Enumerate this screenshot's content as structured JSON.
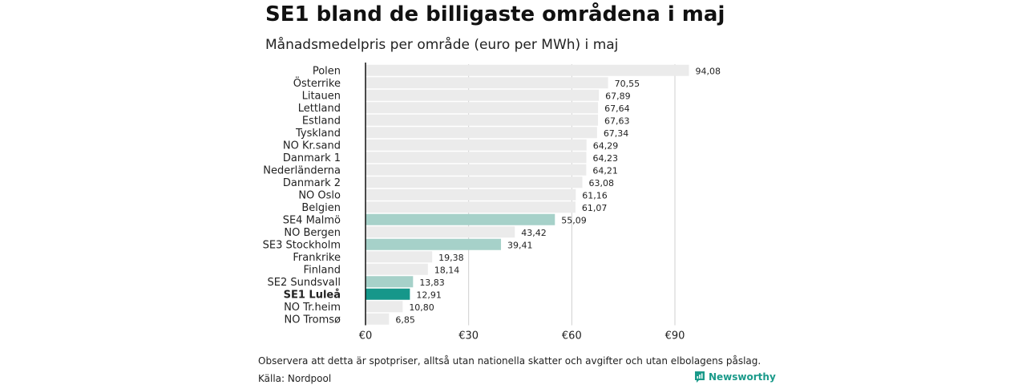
{
  "header": {
    "title": "SE1 bland de billigaste områdena i maj",
    "subtitle": "Månadsmedelpris per område (euro per MWh) i maj"
  },
  "footer": {
    "note": "Observera att detta är spotpriser, alltså utan nationella skatter och avgifter och utan elbolagens påslag.",
    "source": "Källa: Nordpool",
    "brand": "Newsworthy",
    "brand_icon": "bar-chart-logo-icon"
  },
  "colors": {
    "default_bar": "#ebebeb",
    "se_bar": "#a6d1c9",
    "highlight_bar": "#16978a",
    "brand": "#1a9a8a"
  },
  "chart_data": {
    "type": "bar",
    "orientation": "horizontal",
    "title": "SE1 bland de billigaste områdena i maj",
    "subtitle": "Månadsmedelpris per område (euro per MWh) i maj",
    "xlabel": "",
    "ylabel": "",
    "xlim": [
      0,
      90
    ],
    "ticks": [
      0,
      30,
      60,
      90
    ],
    "tick_labels": [
      "€0",
      "€30",
      "€60",
      "€90"
    ],
    "grid": true,
    "categories": [
      "Polen",
      "Österrike",
      "Litauen",
      "Lettland",
      "Estland",
      "Tyskland",
      "NO Kr.sand",
      "Danmark  1",
      "Nederländerna",
      "Danmark  2",
      "NO Oslo",
      "Belgien",
      "SE4  Malmö",
      "NO Bergen",
      "SE3  Stockholm",
      "Frankrike",
      "Finland",
      "SE2  Sundsvall",
      "SE1 Luleå",
      "NO Tr.heim",
      "NO Tromsø"
    ],
    "values": [
      94.08,
      70.55,
      67.89,
      67.64,
      67.63,
      67.34,
      64.29,
      64.23,
      64.21,
      63.08,
      61.16,
      61.07,
      55.09,
      43.42,
      39.41,
      19.38,
      18.14,
      13.83,
      12.91,
      10.8,
      6.85
    ],
    "value_labels": [
      "94,08",
      "70,55",
      "67,89",
      "67,64",
      "67,63",
      "67,34",
      "64,29",
      "64,23",
      "64,21",
      "63,08",
      "61,16",
      "61,07",
      "55,09",
      "43,42",
      "39,41",
      "19,38",
      "18,14",
      "13,83",
      "12,91",
      "10,80",
      "6,85"
    ],
    "groups": [
      "other",
      "other",
      "other",
      "other",
      "other",
      "other",
      "other",
      "other",
      "other",
      "other",
      "other",
      "other",
      "se",
      "other",
      "se",
      "other",
      "other",
      "se",
      "highlight",
      "other",
      "other"
    ]
  }
}
